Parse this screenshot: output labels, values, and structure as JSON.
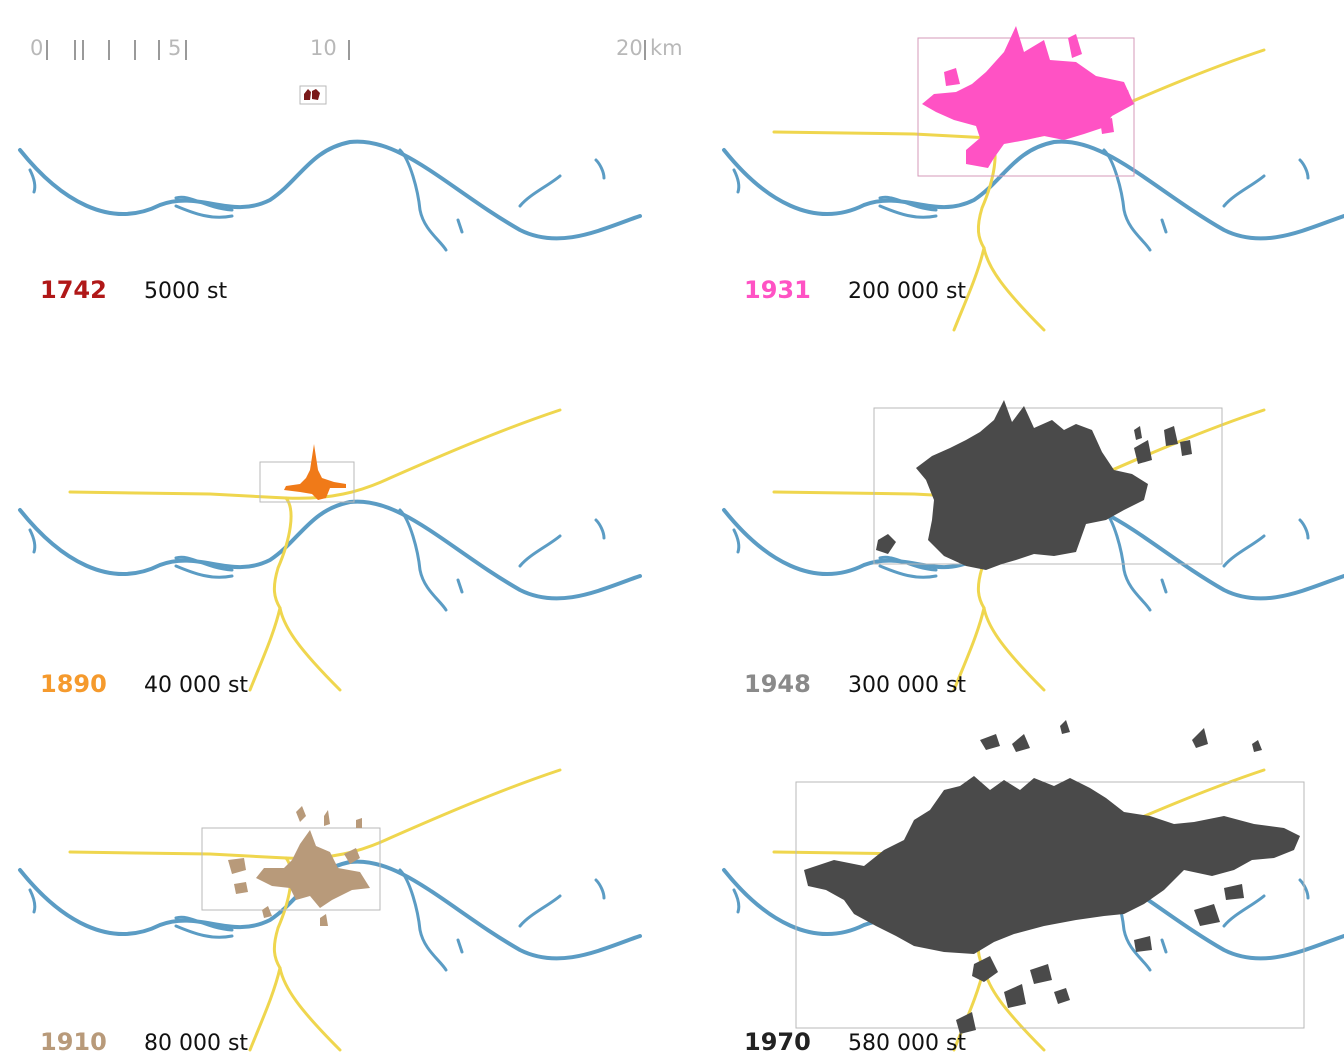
{
  "scale_bar": {
    "labels": [
      "0",
      "5",
      "10",
      "20",
      "km"
    ]
  },
  "colors": {
    "river": "#5b9cc4",
    "road": "#efd64e",
    "frame": "#b9b9b9",
    "1742": "#b01818",
    "1890": "#f59a2d",
    "1910": "#b89a7a",
    "1931": "#ff52c4",
    "1948": "#8a8a8a",
    "1970": "#222222",
    "built_dark": "#4a4a4a"
  },
  "panels": [
    {
      "year": "1742",
      "population": "5000 st",
      "color": "#b01818"
    },
    {
      "year": "1890",
      "population": "40 000 st",
      "color": "#f59a2d"
    },
    {
      "year": "1910",
      "population": "80 000 st",
      "color": "#b89a7a"
    },
    {
      "year": "1931",
      "population": "200 000 st",
      "color": "#ff52c4"
    },
    {
      "year": "1948",
      "population": "300 000 st",
      "color": "#8a8a8a"
    },
    {
      "year": "1970",
      "population": "580 000 st",
      "color": "#222222"
    }
  ]
}
